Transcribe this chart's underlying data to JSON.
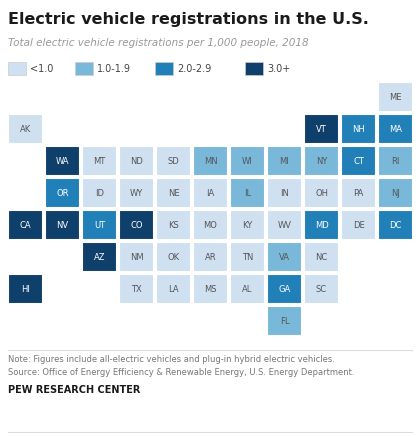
{
  "title": "Electric vehicle registrations in the U.S.",
  "subtitle": "Total electric vehicle registrations per 1,000 people, 2018",
  "note1": "Note: Figures include all-electric vehicles and plug-in hybrid electric vehicles.",
  "note2": "Source: Office of Energy Efficiency & Renewable Energy, U.S. Energy Department.",
  "footer": "PEW RESEARCH CENTER",
  "legend_labels": [
    "<1.0",
    "1.0-1.9",
    "2.0-2.9",
    "3.0+"
  ],
  "colors": {
    "0": "#cfe1f0",
    "1": "#7ab8d9",
    "2": "#2280b8",
    "3": "#0f3f6b"
  },
  "bg_color": "#ffffff",
  "states": [
    {
      "abbr": "AK",
      "col": 0,
      "row": 1,
      "cat": 0
    },
    {
      "abbr": "ME",
      "col": 10,
      "row": 0,
      "cat": 0
    },
    {
      "abbr": "VT",
      "col": 8,
      "row": 1,
      "cat": 3
    },
    {
      "abbr": "NH",
      "col": 9,
      "row": 1,
      "cat": 2
    },
    {
      "abbr": "MA",
      "col": 10,
      "row": 1,
      "cat": 2
    },
    {
      "abbr": "WA",
      "col": 1,
      "row": 2,
      "cat": 3
    },
    {
      "abbr": "MT",
      "col": 2,
      "row": 2,
      "cat": 0
    },
    {
      "abbr": "ND",
      "col": 3,
      "row": 2,
      "cat": 0
    },
    {
      "abbr": "SD",
      "col": 4,
      "row": 2,
      "cat": 0
    },
    {
      "abbr": "MN",
      "col": 5,
      "row": 2,
      "cat": 1
    },
    {
      "abbr": "WI",
      "col": 6,
      "row": 2,
      "cat": 1
    },
    {
      "abbr": "MI",
      "col": 7,
      "row": 2,
      "cat": 1
    },
    {
      "abbr": "NY",
      "col": 8,
      "row": 2,
      "cat": 1
    },
    {
      "abbr": "CT",
      "col": 9,
      "row": 2,
      "cat": 2
    },
    {
      "abbr": "RI",
      "col": 10,
      "row": 2,
      "cat": 1
    },
    {
      "abbr": "OR",
      "col": 1,
      "row": 3,
      "cat": 2
    },
    {
      "abbr": "ID",
      "col": 2,
      "row": 3,
      "cat": 0
    },
    {
      "abbr": "WY",
      "col": 3,
      "row": 3,
      "cat": 0
    },
    {
      "abbr": "NE",
      "col": 4,
      "row": 3,
      "cat": 0
    },
    {
      "abbr": "IA",
      "col": 5,
      "row": 3,
      "cat": 0
    },
    {
      "abbr": "IL",
      "col": 6,
      "row": 3,
      "cat": 1
    },
    {
      "abbr": "IN",
      "col": 7,
      "row": 3,
      "cat": 0
    },
    {
      "abbr": "OH",
      "col": 8,
      "row": 3,
      "cat": 0
    },
    {
      "abbr": "PA",
      "col": 9,
      "row": 3,
      "cat": 0
    },
    {
      "abbr": "NJ",
      "col": 10,
      "row": 3,
      "cat": 1
    },
    {
      "abbr": "CA",
      "col": 0,
      "row": 4,
      "cat": 3
    },
    {
      "abbr": "NV",
      "col": 1,
      "row": 4,
      "cat": 3
    },
    {
      "abbr": "UT",
      "col": 2,
      "row": 4,
      "cat": 2
    },
    {
      "abbr": "CO",
      "col": 3,
      "row": 4,
      "cat": 3
    },
    {
      "abbr": "KS",
      "col": 4,
      "row": 4,
      "cat": 0
    },
    {
      "abbr": "MO",
      "col": 5,
      "row": 4,
      "cat": 0
    },
    {
      "abbr": "KY",
      "col": 6,
      "row": 4,
      "cat": 0
    },
    {
      "abbr": "WV",
      "col": 7,
      "row": 4,
      "cat": 0
    },
    {
      "abbr": "MD",
      "col": 8,
      "row": 4,
      "cat": 2
    },
    {
      "abbr": "DE",
      "col": 9,
      "row": 4,
      "cat": 0
    },
    {
      "abbr": "DC",
      "col": 10,
      "row": 4,
      "cat": 2
    },
    {
      "abbr": "AZ",
      "col": 2,
      "row": 5,
      "cat": 3
    },
    {
      "abbr": "NM",
      "col": 3,
      "row": 5,
      "cat": 0
    },
    {
      "abbr": "OK",
      "col": 4,
      "row": 5,
      "cat": 0
    },
    {
      "abbr": "AR",
      "col": 5,
      "row": 5,
      "cat": 0
    },
    {
      "abbr": "TN",
      "col": 6,
      "row": 5,
      "cat": 0
    },
    {
      "abbr": "VA",
      "col": 7,
      "row": 5,
      "cat": 1
    },
    {
      "abbr": "NC",
      "col": 8,
      "row": 5,
      "cat": 0
    },
    {
      "abbr": "HI",
      "col": 0,
      "row": 6,
      "cat": 3
    },
    {
      "abbr": "TX",
      "col": 3,
      "row": 6,
      "cat": 0
    },
    {
      "abbr": "LA",
      "col": 4,
      "row": 6,
      "cat": 0
    },
    {
      "abbr": "MS",
      "col": 5,
      "row": 6,
      "cat": 0
    },
    {
      "abbr": "AL",
      "col": 6,
      "row": 6,
      "cat": 0
    },
    {
      "abbr": "GA",
      "col": 7,
      "row": 6,
      "cat": 2
    },
    {
      "abbr": "SC",
      "col": 8,
      "row": 6,
      "cat": 0
    },
    {
      "abbr": "FL",
      "col": 7,
      "row": 7,
      "cat": 1
    }
  ]
}
